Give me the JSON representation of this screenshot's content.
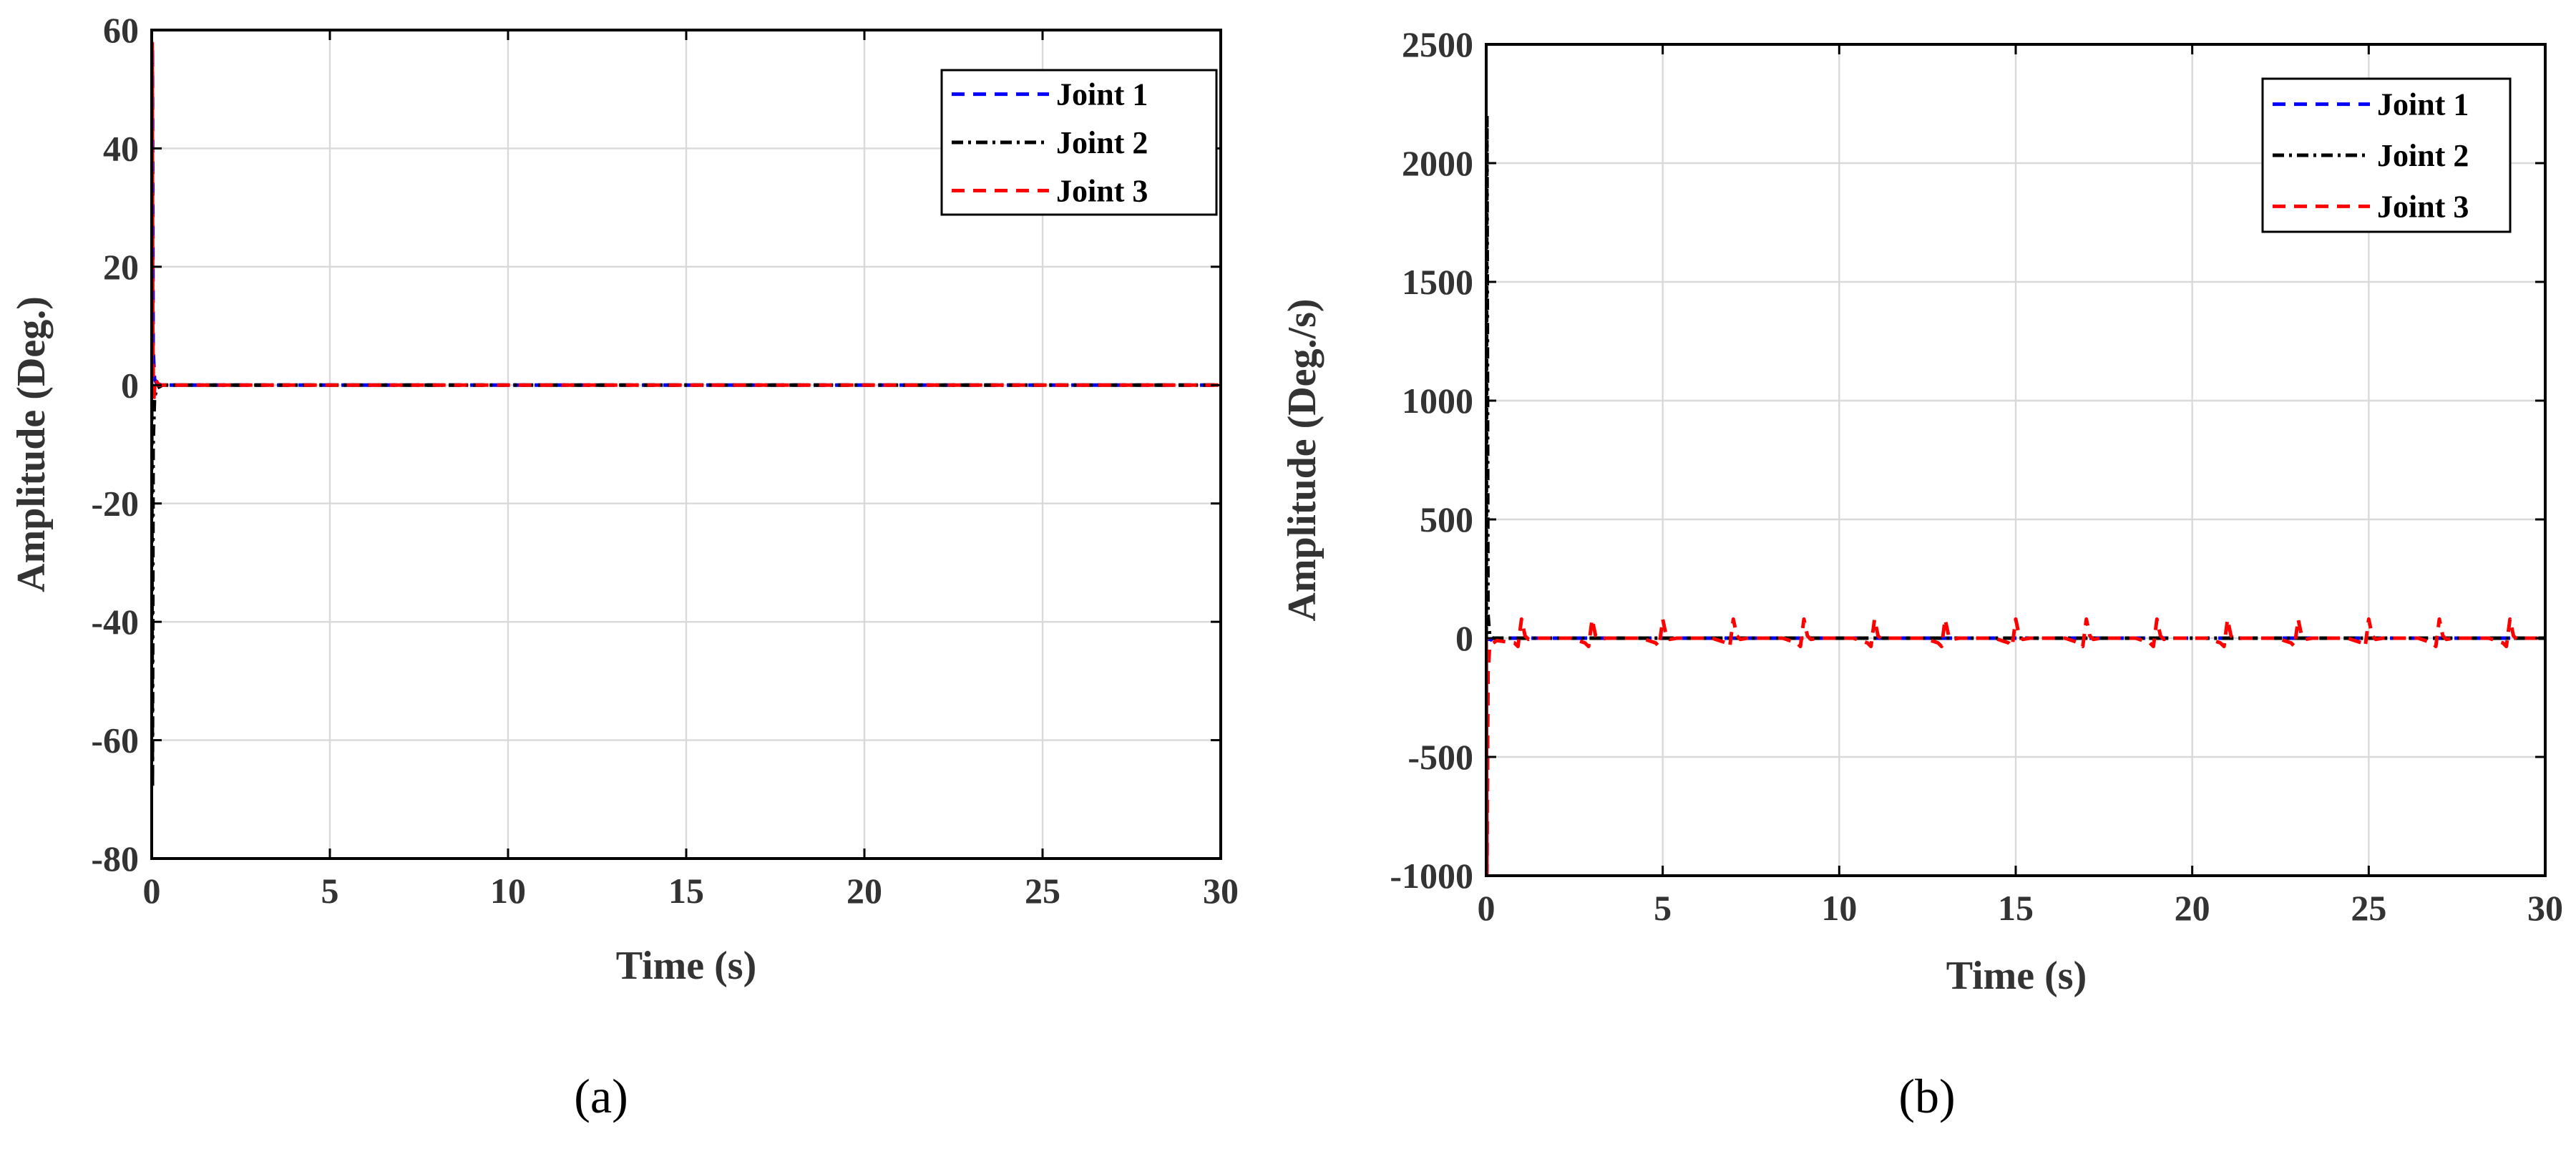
{
  "chart_data": [
    {
      "type": "line",
      "panel_label": "(a)",
      "xlabel": "Time (s)",
      "ylabel": "Amplitude (Deg.)",
      "xlim": [
        0,
        30
      ],
      "ylim": [
        -80,
        60
      ],
      "xticks": [
        0,
        5,
        10,
        15,
        20,
        25,
        30
      ],
      "yticks": [
        -80,
        -60,
        -40,
        -20,
        0,
        20,
        40,
        60
      ],
      "grid": true,
      "legend_position": "top-right",
      "series": [
        {
          "name": "Joint 1",
          "color": "#0000ff",
          "style": "dashed",
          "x": [
            0,
            0.02,
            0.04,
            0.08,
            0.15,
            0.3,
            1,
            30
          ],
          "y": [
            0,
            57,
            6,
            1,
            0.2,
            0,
            0,
            0
          ]
        },
        {
          "name": "Joint 2",
          "color": "#000000",
          "style": "dashdot",
          "x": [
            0,
            0.02,
            0.04,
            0.08,
            0.15,
            0.3,
            1,
            30
          ],
          "y": [
            0,
            -68,
            -10,
            -2,
            -0.5,
            0,
            0,
            0
          ]
        },
        {
          "name": "Joint 3",
          "color": "#ff0000",
          "style": "dashed",
          "x": [
            0,
            0.015,
            0.03,
            0.05,
            0.1,
            0.2,
            1,
            30
          ],
          "y": [
            0,
            58,
            10,
            -3,
            1,
            0,
            0,
            0
          ]
        }
      ]
    },
    {
      "type": "line",
      "panel_label": "(b)",
      "xlabel": "Time (s)",
      "ylabel": "Amplitude (Deg./s)",
      "xlim": [
        0,
        30
      ],
      "ylim": [
        -1000,
        2500
      ],
      "xticks": [
        0,
        5,
        10,
        15,
        20,
        25,
        30
      ],
      "yticks": [
        -1000,
        -500,
        0,
        500,
        1000,
        1500,
        2000,
        2500
      ],
      "grid": true,
      "legend_position": "top-right",
      "series": [
        {
          "name": "Joint 1",
          "color": "#0000ff",
          "style": "dashed",
          "x": [
            0,
            0.02,
            0.05,
            0.1,
            0.2,
            0.5,
            30
          ],
          "y": [
            0,
            -1000,
            -80,
            -10,
            0,
            0,
            0
          ]
        },
        {
          "name": "Joint 2",
          "color": "#000000",
          "style": "dashdot",
          "x": [
            0,
            0.02,
            0.05,
            0.1,
            0.2,
            0.5,
            30
          ],
          "y": [
            0,
            2200,
            100,
            10,
            0,
            0,
            0
          ]
        },
        {
          "name": "Joint 3",
          "color": "#ff0000",
          "style": "dashed",
          "x": [
            0,
            0.02,
            0.05,
            0.1,
            0.3,
            0.8,
            0.9,
            1.0,
            1.1,
            1.2,
            1.4,
            2.4,
            2.8,
            2.9,
            3.0,
            3.1,
            3.2,
            3.4,
            4.4,
            4.8,
            4.9,
            5.0,
            5.1,
            5.2,
            5.4,
            6.4,
            6.8,
            6.9,
            7.0,
            7.1,
            7.2,
            7.4,
            8.4,
            8.8,
            8.9,
            9.0,
            9.1,
            9.2,
            9.4,
            10.4,
            10.8,
            10.9,
            11.0,
            11.1,
            11.2,
            11.4,
            12.4,
            12.8,
            12.9,
            13.0,
            13.1,
            13.2,
            13.4,
            14.4,
            14.8,
            14.9,
            15.0,
            15.1,
            15.2,
            15.4,
            16.4,
            16.8,
            16.9,
            17.0,
            17.1,
            17.2,
            17.4,
            18.4,
            18.8,
            18.9,
            19.0,
            19.1,
            19.2,
            19.4,
            20.4,
            20.8,
            20.9,
            21.0,
            21.1,
            21.2,
            21.4,
            22.4,
            22.8,
            22.9,
            23.0,
            23.1,
            23.2,
            23.4,
            24.4,
            24.8,
            24.9,
            25.0,
            25.1,
            25.2,
            25.4,
            26.4,
            26.8,
            26.9,
            27.0,
            27.1,
            27.2,
            27.4,
            28.4,
            28.8,
            28.9,
            29.0,
            29.1,
            29.2,
            29.4,
            30
          ],
          "y": [
            0,
            -1000,
            -150,
            -30,
            -10,
            -20,
            -35,
            80,
            10,
            -5,
            0,
            0,
            -20,
            -35,
            80,
            10,
            -5,
            0,
            0,
            -20,
            -35,
            80,
            10,
            -5,
            0,
            0,
            -20,
            -35,
            80,
            10,
            -5,
            0,
            0,
            -20,
            -35,
            80,
            10,
            -5,
            0,
            0,
            -20,
            -35,
            80,
            10,
            -5,
            0,
            0,
            -20,
            -35,
            80,
            10,
            -5,
            0,
            0,
            -20,
            -35,
            80,
            10,
            -5,
            0,
            0,
            -20,
            -35,
            80,
            10,
            -5,
            0,
            0,
            -20,
            -35,
            80,
            10,
            -5,
            0,
            0,
            -20,
            -35,
            80,
            10,
            -5,
            0,
            0,
            -20,
            -35,
            80,
            10,
            -5,
            0,
            0,
            -20,
            -35,
            80,
            10,
            -5,
            0,
            0,
            -20,
            -35,
            80,
            10,
            -5,
            0,
            0,
            -20,
            -35,
            80,
            10,
            -5,
            0,
            0
          ]
        }
      ]
    }
  ]
}
